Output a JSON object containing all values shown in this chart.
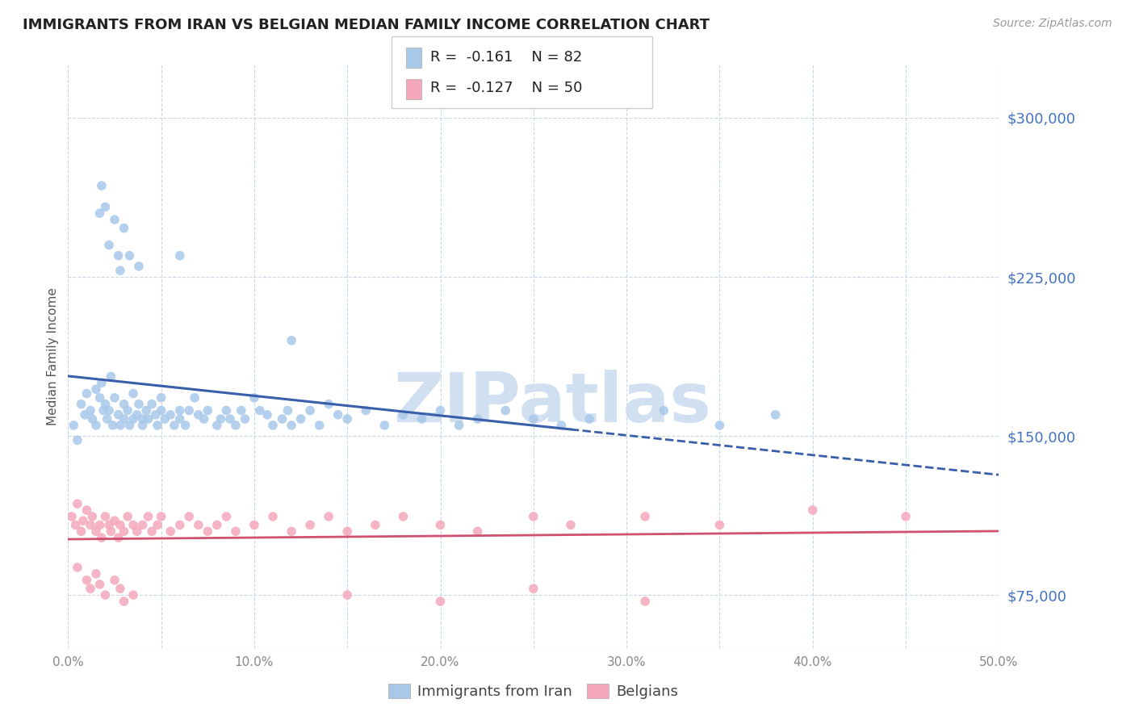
{
  "title": "IMMIGRANTS FROM IRAN VS BELGIAN MEDIAN FAMILY INCOME CORRELATION CHART",
  "source_text": "Source: ZipAtlas.com",
  "ylabel": "Median Family Income",
  "xlim": [
    0.0,
    0.5
  ],
  "ylim": [
    50000,
    325000
  ],
  "yticks": [
    75000,
    150000,
    225000,
    300000
  ],
  "ytick_labels": [
    "$75,000",
    "$150,000",
    "$225,000",
    "$300,000"
  ],
  "xticks": [
    0.0,
    0.05,
    0.1,
    0.15,
    0.2,
    0.25,
    0.3,
    0.35,
    0.4,
    0.45,
    0.5
  ],
  "xtick_labels": [
    "0.0%",
    "",
    "10.0%",
    "",
    "20.0%",
    "",
    "30.0%",
    "",
    "40.0%",
    "",
    "50.0%"
  ],
  "series1_color": "#a8c8ea",
  "series2_color": "#f5a8bc",
  "line1_color": "#3a5faa",
  "line2_color": "#d05070",
  "watermark": "ZIPatlas",
  "watermark_color": "#d0e0f0",
  "legend1_R": "-0.161",
  "legend1_N": "82",
  "legend2_R": "-0.127",
  "legend2_N": "50",
  "background_color": "#ffffff",
  "grid_color": "#c8d8e8",
  "title_color": "#222222",
  "axis_label_color": "#555555",
  "ytick_color": "#4472c4",
  "line1_solid_xmax": 0.27,
  "series1_x": [
    0.003,
    0.005,
    0.007,
    0.009,
    0.01,
    0.012,
    0.013,
    0.015,
    0.015,
    0.017,
    0.018,
    0.019,
    0.02,
    0.021,
    0.022,
    0.023,
    0.024,
    0.025,
    0.027,
    0.028,
    0.03,
    0.03,
    0.032,
    0.033,
    0.035,
    0.035,
    0.037,
    0.038,
    0.04,
    0.04,
    0.042,
    0.043,
    0.045,
    0.047,
    0.048,
    0.05,
    0.05,
    0.052,
    0.055,
    0.057,
    0.06,
    0.06,
    0.063,
    0.065,
    0.068,
    0.07,
    0.073,
    0.075,
    0.08,
    0.082,
    0.085,
    0.087,
    0.09,
    0.093,
    0.095,
    0.1,
    0.103,
    0.107,
    0.11,
    0.115,
    0.118,
    0.12,
    0.125,
    0.13,
    0.135,
    0.14,
    0.145,
    0.15,
    0.16,
    0.17,
    0.18,
    0.19,
    0.2,
    0.21,
    0.22,
    0.235,
    0.25,
    0.265,
    0.28,
    0.32,
    0.35,
    0.38
  ],
  "series1_y": [
    155000,
    148000,
    165000,
    160000,
    170000,
    162000,
    158000,
    172000,
    155000,
    168000,
    175000,
    162000,
    165000,
    158000,
    162000,
    178000,
    155000,
    168000,
    160000,
    155000,
    165000,
    158000,
    162000,
    155000,
    170000,
    158000,
    160000,
    165000,
    158000,
    155000,
    162000,
    158000,
    165000,
    160000,
    155000,
    162000,
    168000,
    158000,
    160000,
    155000,
    162000,
    158000,
    155000,
    162000,
    168000,
    160000,
    158000,
    162000,
    155000,
    158000,
    162000,
    158000,
    155000,
    162000,
    158000,
    168000,
    162000,
    160000,
    155000,
    158000,
    162000,
    155000,
    158000,
    162000,
    155000,
    165000,
    160000,
    158000,
    162000,
    155000,
    160000,
    158000,
    162000,
    155000,
    158000,
    162000,
    158000,
    155000,
    158000,
    162000,
    155000,
    160000
  ],
  "series1_high_x": [
    0.017,
    0.018,
    0.02,
    0.022,
    0.025,
    0.027,
    0.028,
    0.03,
    0.033,
    0.038,
    0.06,
    0.12
  ],
  "series1_high_y": [
    255000,
    268000,
    258000,
    240000,
    252000,
    235000,
    228000,
    248000,
    235000,
    230000,
    235000,
    195000
  ],
  "series2_x": [
    0.002,
    0.004,
    0.005,
    0.007,
    0.008,
    0.01,
    0.012,
    0.013,
    0.015,
    0.017,
    0.018,
    0.02,
    0.022,
    0.023,
    0.025,
    0.027,
    0.028,
    0.03,
    0.032,
    0.035,
    0.037,
    0.04,
    0.043,
    0.045,
    0.048,
    0.05,
    0.055,
    0.06,
    0.065,
    0.07,
    0.075,
    0.08,
    0.085,
    0.09,
    0.1,
    0.11,
    0.12,
    0.13,
    0.14,
    0.15,
    0.165,
    0.18,
    0.2,
    0.22,
    0.25,
    0.27,
    0.31,
    0.35,
    0.4,
    0.45
  ],
  "series2_y": [
    112000,
    108000,
    118000,
    105000,
    110000,
    115000,
    108000,
    112000,
    105000,
    108000,
    102000,
    112000,
    108000,
    105000,
    110000,
    102000,
    108000,
    105000,
    112000,
    108000,
    105000,
    108000,
    112000,
    105000,
    108000,
    112000,
    105000,
    108000,
    112000,
    108000,
    105000,
    108000,
    112000,
    105000,
    108000,
    112000,
    105000,
    108000,
    112000,
    105000,
    108000,
    112000,
    108000,
    105000,
    112000,
    108000,
    112000,
    108000,
    115000,
    112000
  ],
  "series2_low_x": [
    0.005,
    0.01,
    0.012,
    0.015,
    0.017,
    0.02,
    0.025,
    0.028,
    0.03,
    0.035,
    0.15,
    0.2,
    0.25,
    0.31
  ],
  "series2_low_y": [
    88000,
    82000,
    78000,
    85000,
    80000,
    75000,
    82000,
    78000,
    72000,
    75000,
    75000,
    72000,
    78000,
    72000
  ]
}
